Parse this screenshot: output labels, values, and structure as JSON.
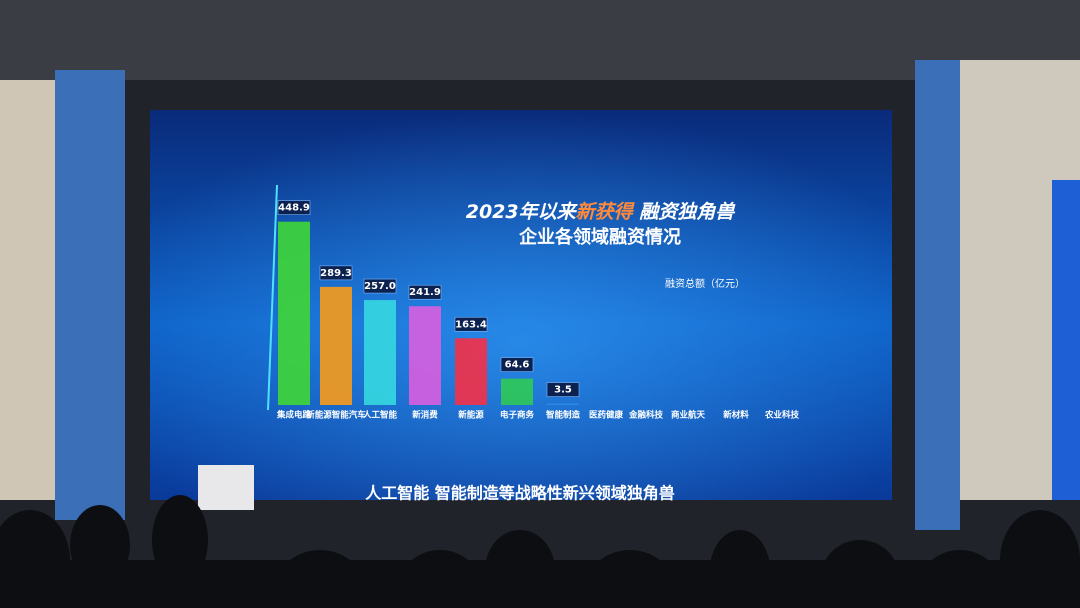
{
  "chart_data": {
    "type": "bar",
    "title": [
      "2023年以来",
      "新获得",
      " 融资独角兽"
    ],
    "subtitle": "企业各领域融资情况",
    "unit_label": "融资总额（亿元）",
    "caption": "人工智能 智能制造等战略性新兴领域独角兽",
    "categories": [
      "集成电路",
      "新能源智能汽车",
      "人工智能",
      "新消费",
      "新能源",
      "电子商务",
      "智能制造",
      "医药健康",
      "金融科技",
      "商业航天",
      "新材料",
      "农业科技"
    ],
    "values": [
      448.9,
      289.3,
      257.0,
      241.9,
      163.4,
      64.6,
      3.5,
      null,
      null,
      null,
      null,
      null
    ],
    "value_labels": [
      "448.9",
      "289.3",
      "257.0",
      "241.9",
      "163.4",
      "64.6",
      "3.5",
      null,
      null,
      null,
      null,
      null
    ],
    "colors": [
      "#3fd43a",
      "#f39a1e",
      "#35d6e0",
      "#d55ee0",
      "#f0324a",
      "#2fc85a",
      "#2e8be8",
      "#2e8be8",
      "#2e8be8",
      "#2e8be8",
      "#2e8be8",
      "#2e8be8"
    ],
    "ylim": [
      0,
      480
    ]
  }
}
